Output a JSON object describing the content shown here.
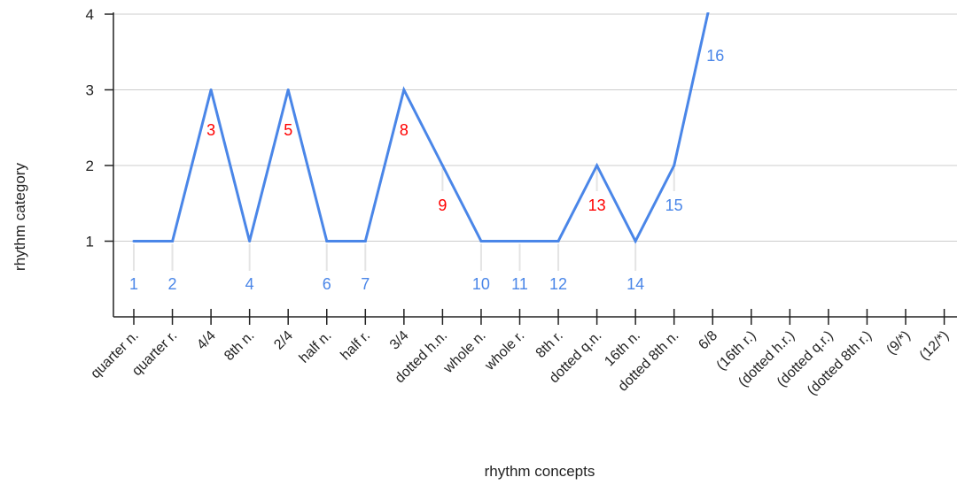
{
  "chart_data": {
    "type": "line",
    "xlabel": "rhythm concepts",
    "ylabel": "rhythm category",
    "ylim": [
      0,
      4
    ],
    "yticks": [
      1,
      2,
      3,
      4
    ],
    "grid": true,
    "categories": [
      "quarter n.",
      "quarter r.",
      "4/4",
      "8th n.",
      "2/4",
      "half n.",
      "half r.",
      "3/4",
      "dotted h.n.",
      "whole n.",
      "whole r.",
      "8th r.",
      "dotted q.n.",
      "16th n.",
      "dotted 8th n.",
      "6/8",
      "(16th r.)",
      "(dotted h.r.)",
      "(dotted q.r.)",
      "(dotted 8th r.)",
      "(9/*)",
      "(12/*)"
    ],
    "series": [
      {
        "values": [
          1,
          1,
          3,
          1,
          3,
          1,
          1,
          3,
          2,
          1,
          1,
          1,
          2,
          1,
          2,
          4.3,
          null,
          null,
          null,
          null,
          null,
          null
        ]
      }
    ],
    "point_labels": [
      {
        "index": 0,
        "text": "1",
        "color": "blue"
      },
      {
        "index": 1,
        "text": "2",
        "color": "blue"
      },
      {
        "index": 2,
        "text": "3",
        "color": "red"
      },
      {
        "index": 3,
        "text": "4",
        "color": "blue"
      },
      {
        "index": 4,
        "text": "5",
        "color": "red"
      },
      {
        "index": 5,
        "text": "6",
        "color": "blue"
      },
      {
        "index": 6,
        "text": "7",
        "color": "blue"
      },
      {
        "index": 7,
        "text": "8",
        "color": "red"
      },
      {
        "index": 8,
        "text": "9",
        "color": "red"
      },
      {
        "index": 9,
        "text": "10",
        "color": "blue"
      },
      {
        "index": 10,
        "text": "11",
        "color": "blue"
      },
      {
        "index": 11,
        "text": "12",
        "color": "blue"
      },
      {
        "index": 12,
        "text": "13",
        "color": "red"
      },
      {
        "index": 13,
        "text": "14",
        "color": "blue"
      },
      {
        "index": 14,
        "text": "15",
        "color": "blue"
      },
      {
        "index": 15,
        "text": "16",
        "color": "blue"
      }
    ],
    "colors": {
      "line": "#4a86e8",
      "blue_label": "#4a86e8",
      "red_label": "#ff0000",
      "grid": "#cccccc",
      "axis": "#222222"
    }
  }
}
